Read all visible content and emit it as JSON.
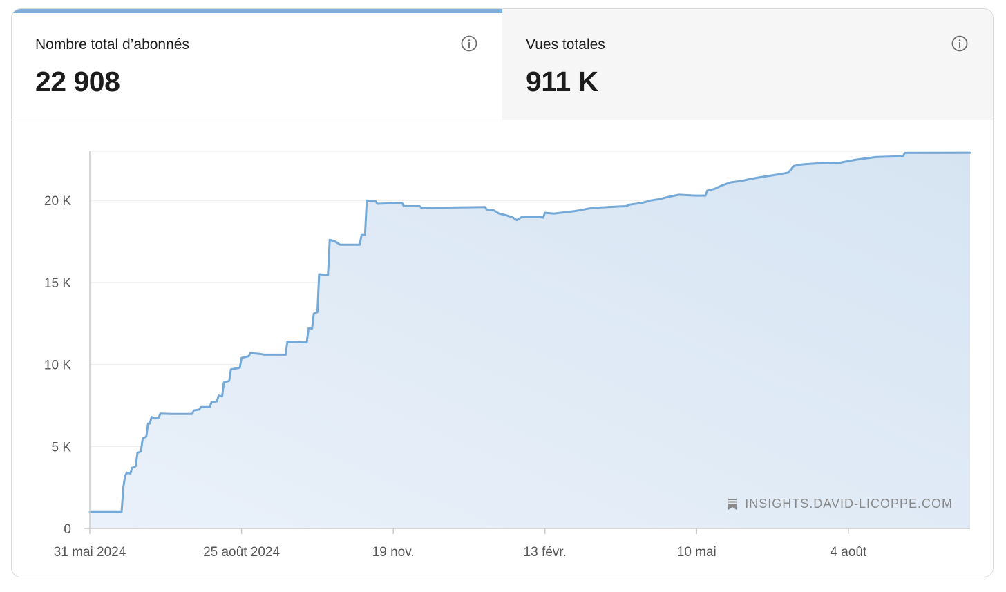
{
  "tabs": [
    {
      "label": "Nombre total d’abonnés",
      "value": "22 908",
      "active": true
    },
    {
      "label": "Vues totales",
      "value": "911 K",
      "active": false
    }
  ],
  "watermark": "INSIGHTS.DAVID-LICOPPE.COM",
  "colors": {
    "line": "#74a9d8",
    "fill_top": "#d6e4f2",
    "fill_bottom": "#eaf1fa",
    "tab_accent": "#7baedb"
  },
  "icons": {
    "info": "info-circle-icon",
    "watermark": "bookmark-stack-icon"
  },
  "chart_data": {
    "type": "area",
    "title": "",
    "xlabel": "",
    "ylabel": "",
    "ylim": [
      0,
      23000
    ],
    "grid": true,
    "y_ticks": [
      {
        "value": 0,
        "label": "0"
      },
      {
        "value": 5000,
        "label": "5 K"
      },
      {
        "value": 10000,
        "label": "10 K"
      },
      {
        "value": 15000,
        "label": "15 K"
      },
      {
        "value": 20000,
        "label": "20 K"
      }
    ],
    "x_ticks": [
      {
        "date": "2024-05-31",
        "label": "31 mai 2024"
      },
      {
        "date": "2024-08-25",
        "label": "25 août 2024"
      },
      {
        "date": "2024-11-19",
        "label": "19 nov."
      },
      {
        "date": "2025-02-13",
        "label": "13 févr."
      },
      {
        "date": "2025-05-10",
        "label": "10 mai"
      },
      {
        "date": "2025-08-04",
        "label": "4 août"
      }
    ],
    "xlim": [
      "2024-05-31",
      "2025-10-12"
    ],
    "series": [
      {
        "name": "",
        "points": [
          [
            "2024-05-31",
            1000
          ],
          [
            "2024-06-18",
            1000
          ],
          [
            "2024-06-19",
            2500
          ],
          [
            "2024-06-20",
            3200
          ],
          [
            "2024-06-21",
            3400
          ],
          [
            "2024-06-23",
            3350
          ],
          [
            "2024-06-24",
            3700
          ],
          [
            "2024-06-26",
            3800
          ],
          [
            "2024-06-27",
            4600
          ],
          [
            "2024-06-29",
            4700
          ],
          [
            "2024-06-30",
            5500
          ],
          [
            "2024-07-02",
            5600
          ],
          [
            "2024-07-03",
            6400
          ],
          [
            "2024-07-04",
            6400
          ],
          [
            "2024-07-05",
            6800
          ],
          [
            "2024-07-07",
            6700
          ],
          [
            "2024-07-09",
            6750
          ],
          [
            "2024-07-10",
            7000
          ],
          [
            "2024-07-16",
            6980
          ],
          [
            "2024-07-28",
            6980
          ],
          [
            "2024-07-29",
            7200
          ],
          [
            "2024-08-01",
            7250
          ],
          [
            "2024-08-02",
            7400
          ],
          [
            "2024-08-07",
            7400
          ],
          [
            "2024-08-08",
            7700
          ],
          [
            "2024-08-11",
            7750
          ],
          [
            "2024-08-12",
            8100
          ],
          [
            "2024-08-14",
            8050
          ],
          [
            "2024-08-15",
            8900
          ],
          [
            "2024-08-18",
            9000
          ],
          [
            "2024-08-19",
            9700
          ],
          [
            "2024-08-24",
            9800
          ],
          [
            "2024-08-25",
            10400
          ],
          [
            "2024-08-29",
            10500
          ],
          [
            "2024-08-30",
            10700
          ],
          [
            "2024-09-04",
            10650
          ],
          [
            "2024-09-07",
            10600
          ],
          [
            "2024-09-19",
            10600
          ],
          [
            "2024-09-20",
            11400
          ],
          [
            "2024-10-01",
            11350
          ],
          [
            "2024-10-02",
            12200
          ],
          [
            "2024-10-04",
            12200
          ],
          [
            "2024-10-05",
            13100
          ],
          [
            "2024-10-07",
            13200
          ],
          [
            "2024-10-08",
            15500
          ],
          [
            "2024-10-13",
            15450
          ],
          [
            "2024-10-14",
            17600
          ],
          [
            "2024-10-17",
            17500
          ],
          [
            "2024-10-20",
            17300
          ],
          [
            "2024-10-31",
            17300
          ],
          [
            "2024-11-01",
            17900
          ],
          [
            "2024-11-03",
            17900
          ],
          [
            "2024-11-04",
            20000
          ],
          [
            "2024-11-09",
            19950
          ],
          [
            "2024-11-10",
            19800
          ],
          [
            "2024-11-24",
            19850
          ],
          [
            "2024-11-25",
            19650
          ],
          [
            "2024-12-04",
            19650
          ],
          [
            "2024-12-05",
            19550
          ],
          [
            "2025-01-10",
            19600
          ],
          [
            "2025-01-11",
            19450
          ],
          [
            "2025-01-15",
            19400
          ],
          [
            "2025-01-18",
            19200
          ],
          [
            "2025-01-22",
            19100
          ],
          [
            "2025-01-26",
            18950
          ],
          [
            "2025-01-28",
            18800
          ],
          [
            "2025-01-31",
            19000
          ],
          [
            "2025-02-10",
            19000
          ],
          [
            "2025-02-12",
            18950
          ],
          [
            "2025-02-13",
            19250
          ],
          [
            "2025-02-18",
            19200
          ],
          [
            "2025-02-22",
            19250
          ],
          [
            "2025-02-26",
            19300
          ],
          [
            "2025-03-02",
            19350
          ],
          [
            "2025-03-07",
            19450
          ],
          [
            "2025-03-12",
            19550
          ],
          [
            "2025-03-21",
            19600
          ],
          [
            "2025-03-31",
            19650
          ],
          [
            "2025-04-02",
            19750
          ],
          [
            "2025-04-09",
            19850
          ],
          [
            "2025-04-14",
            20000
          ],
          [
            "2025-04-20",
            20100
          ],
          [
            "2025-04-23",
            20200
          ],
          [
            "2025-04-30",
            20350
          ],
          [
            "2025-05-09",
            20300
          ],
          [
            "2025-05-15",
            20300
          ],
          [
            "2025-05-16",
            20600
          ],
          [
            "2025-05-20",
            20700
          ],
          [
            "2025-05-24",
            20900
          ],
          [
            "2025-05-29",
            21100
          ],
          [
            "2025-06-05",
            21200
          ],
          [
            "2025-06-09",
            21300
          ],
          [
            "2025-06-14",
            21400
          ],
          [
            "2025-06-20",
            21500
          ],
          [
            "2025-06-26",
            21600
          ],
          [
            "2025-07-01",
            21700
          ],
          [
            "2025-07-04",
            22100
          ],
          [
            "2025-07-09",
            22200
          ],
          [
            "2025-07-16",
            22250
          ],
          [
            "2025-07-30",
            22300
          ],
          [
            "2025-08-09",
            22500
          ],
          [
            "2025-08-20",
            22650
          ],
          [
            "2025-09-04",
            22700
          ],
          [
            "2025-09-05",
            22900
          ],
          [
            "2025-10-12",
            22908
          ]
        ]
      }
    ]
  }
}
